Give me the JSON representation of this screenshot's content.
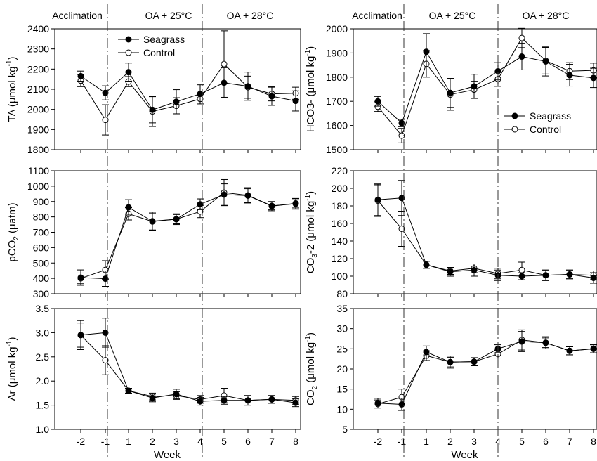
{
  "figure": {
    "xlabel": "Week",
    "x_ticks": [
      "-2",
      "-1",
      "1",
      "2",
      "3",
      "4",
      "5",
      "6",
      "7",
      "8"
    ],
    "phases": [
      "Acclimation",
      "OA + 25°C",
      "OA + 28°C"
    ],
    "phase_boundaries_after": [
      "-1",
      "4"
    ],
    "legend": {
      "seagrass": "Seagrass",
      "control": "Control"
    },
    "colors": {
      "seagrass": "#000000",
      "control": "#ffffff",
      "outline": "#000000"
    }
  },
  "chart_data": [
    {
      "type": "line",
      "ylabel_parts": {
        "main": "TA (μmol kg",
        "sup": "-1",
        "tail": ")"
      },
      "ylim": [
        1800,
        2400
      ],
      "yticks": [
        1800,
        1900,
        2000,
        2100,
        2200,
        2300,
        2400
      ],
      "legend_position": "top-left",
      "categories": [
        "-2",
        "-1",
        "1",
        "2",
        "3",
        "4",
        "5",
        "6",
        "7",
        "8"
      ],
      "series": [
        {
          "name": "Seagrass",
          "values": [
            2165,
            2082,
            2185,
            1998,
            2038,
            2077,
            2132,
            2115,
            2065,
            2042
          ],
          "errors": [
            25,
            35,
            45,
            65,
            60,
            45,
            75,
            70,
            45,
            50
          ]
        },
        {
          "name": "Control",
          "values": [
            2143,
            1948,
            2138,
            1990,
            2018,
            2052,
            2225,
            2110,
            2077,
            2080
          ],
          "errors": [
            30,
            75,
            25,
            75,
            40,
            25,
            165,
            55,
            35,
            30
          ]
        }
      ]
    },
    {
      "type": "line",
      "ylabel_parts": {
        "main": "HCO3- (μmol kg",
        "sup": "-1",
        "tail": ")"
      },
      "ylim": [
        1500,
        2000
      ],
      "yticks": [
        1500,
        1600,
        1700,
        1800,
        1900,
        2000
      ],
      "legend_position": "middle-right",
      "categories": [
        "-2",
        "-1",
        "1",
        "2",
        "3",
        "4",
        "5",
        "6",
        "7",
        "8"
      ],
      "series": [
        {
          "name": "Seagrass",
          "values": [
            1700,
            1610,
            1905,
            1735,
            1762,
            1825,
            1885,
            1865,
            1808,
            1797
          ],
          "errors": [
            20,
            15,
            75,
            60,
            50,
            35,
            55,
            60,
            45,
            40
          ]
        },
        {
          "name": "Control",
          "values": [
            1678,
            1558,
            1855,
            1728,
            1748,
            1792,
            1962,
            1868,
            1825,
            1828
          ],
          "errors": [
            20,
            30,
            55,
            65,
            35,
            30,
            40,
            55,
            35,
            30
          ]
        }
      ]
    },
    {
      "type": "line",
      "ylabel_parts": {
        "main": "pCO",
        "sub": "2",
        "tail": " (μatm)"
      },
      "ylim": [
        300,
        1100
      ],
      "yticks": [
        300,
        400,
        500,
        600,
        700,
        800,
        900,
        1000,
        1100
      ],
      "categories": [
        "-2",
        "-1",
        "1",
        "2",
        "3",
        "4",
        "5",
        "6",
        "7",
        "8"
      ],
      "series": [
        {
          "name": "Seagrass",
          "values": [
            405,
            398,
            862,
            772,
            785,
            882,
            945,
            938,
            870,
            888
          ],
          "errors": [
            50,
            50,
            50,
            60,
            35,
            35,
            70,
            45,
            30,
            30
          ]
        },
        {
          "name": "Control",
          "values": [
            400,
            455,
            820,
            770,
            785,
            835,
            958,
            940,
            872,
            885
          ],
          "errors": [
            35,
            60,
            40,
            55,
            30,
            40,
            85,
            50,
            25,
            35
          ]
        }
      ]
    },
    {
      "type": "line",
      "ylabel_parts": {
        "main": "CO",
        "sub": "3",
        "tail": "-2 (μmol kg",
        "sup": "-1",
        "tail2": ")"
      },
      "ylim": [
        80,
        220
      ],
      "yticks": [
        80,
        100,
        120,
        140,
        160,
        180,
        200,
        220
      ],
      "categories": [
        "-2",
        "-1",
        "1",
        "2",
        "3",
        "4",
        "5",
        "6",
        "7",
        "8"
      ],
      "series": [
        {
          "name": "Seagrass",
          "values": [
            187,
            189,
            113,
            105,
            107,
            101,
            100,
            101,
            102,
            98
          ],
          "errors": [
            18,
            20,
            4,
            5,
            7,
            6,
            4,
            6,
            5,
            6
          ]
        },
        {
          "name": "Control",
          "values": [
            186,
            154,
            113,
            106,
            109,
            103,
            107,
            101,
            102,
            101
          ],
          "errors": [
            18,
            20,
            4,
            4,
            5,
            6,
            9,
            6,
            5,
            5
          ]
        }
      ]
    },
    {
      "type": "line",
      "ylabel_parts": {
        "main": "Ar (μmol kg",
        "sup": "-1",
        "tail": ")"
      },
      "ylim": [
        1.0,
        3.5
      ],
      "yticks": [
        1.0,
        1.5,
        2.0,
        2.5,
        3.0,
        3.5
      ],
      "categories": [
        "-2",
        "-1",
        "1",
        "2",
        "3",
        "4",
        "5",
        "6",
        "7",
        "8"
      ],
      "series": [
        {
          "name": "Seagrass",
          "values": [
            2.95,
            3.0,
            1.8,
            1.65,
            1.73,
            1.58,
            1.6,
            1.6,
            1.62,
            1.55
          ],
          "errors": [
            0.3,
            0.3,
            0.05,
            0.08,
            0.1,
            0.08,
            0.08,
            0.1,
            0.08,
            0.08
          ]
        },
        {
          "name": "Control",
          "values": [
            2.95,
            2.43,
            1.8,
            1.68,
            1.7,
            1.62,
            1.7,
            1.6,
            1.62,
            1.6
          ],
          "errors": [
            0.25,
            0.3,
            0.05,
            0.07,
            0.08,
            0.08,
            0.15,
            0.1,
            0.08,
            0.08
          ]
        }
      ]
    },
    {
      "type": "line",
      "ylabel_parts": {
        "main": "CO",
        "sub": "2",
        "tail": " (μmol kg",
        "sup": "-1",
        "tail2": ")"
      },
      "ylim": [
        5,
        35
      ],
      "yticks": [
        5,
        10,
        15,
        20,
        25,
        30,
        35
      ],
      "categories": [
        "-2",
        "-1",
        "1",
        "2",
        "3",
        "4",
        "5",
        "6",
        "7",
        "8"
      ],
      "series": [
        {
          "name": "Seagrass",
          "values": [
            11.5,
            11.2,
            24.2,
            21.7,
            21.8,
            25.0,
            26.8,
            26.5,
            24.5,
            25.0
          ],
          "errors": [
            1.2,
            1.5,
            1.5,
            1.5,
            1.0,
            1.0,
            2.5,
            1.5,
            1.0,
            1.0
          ]
        },
        {
          "name": "Control",
          "values": [
            11.3,
            13.0,
            23.3,
            21.7,
            21.8,
            23.7,
            27.2,
            26.5,
            24.5,
            25.0
          ],
          "errors": [
            1.0,
            2.0,
            1.2,
            1.2,
            1.0,
            1.0,
            2.5,
            1.2,
            1.0,
            1.0
          ]
        }
      ]
    }
  ]
}
